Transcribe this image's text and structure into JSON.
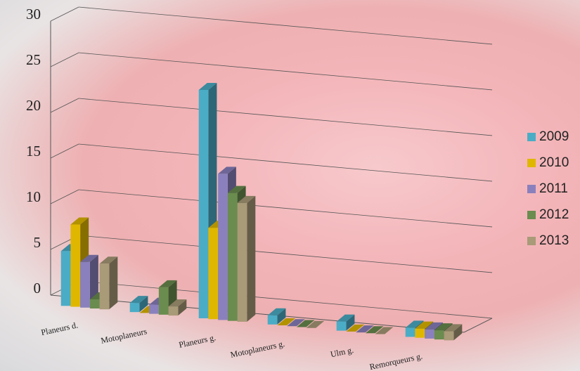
{
  "chart_data": {
    "type": "bar3d",
    "categories": [
      "Planeurs d.",
      "Motoplaneurs",
      "Planeurs g.",
      "Motoplaneurs g.",
      "Ulm g.",
      "Remorqueurs g."
    ],
    "series": [
      {
        "name": "2009",
        "color": "#4bacc6",
        "values": [
          6,
          1,
          25,
          1,
          1,
          1
        ]
      },
      {
        "name": "2010",
        "color": "#e0b700",
        "values": [
          9,
          0,
          10,
          0,
          0,
          1
        ]
      },
      {
        "name": "2011",
        "color": "#8a80bd",
        "values": [
          5,
          1,
          16,
          0,
          0,
          1
        ]
      },
      {
        "name": "2012",
        "color": "#6a8c4f",
        "values": [
          1,
          3,
          14,
          0,
          0,
          1
        ]
      },
      {
        "name": "2013",
        "color": "#a99a78",
        "values": [
          5,
          1,
          13,
          0,
          0,
          1
        ]
      }
    ],
    "ylim": [
      0,
      30
    ],
    "yticks": [
      0,
      5,
      10,
      15,
      20,
      25,
      30
    ],
    "grid": true,
    "legend": "right"
  }
}
